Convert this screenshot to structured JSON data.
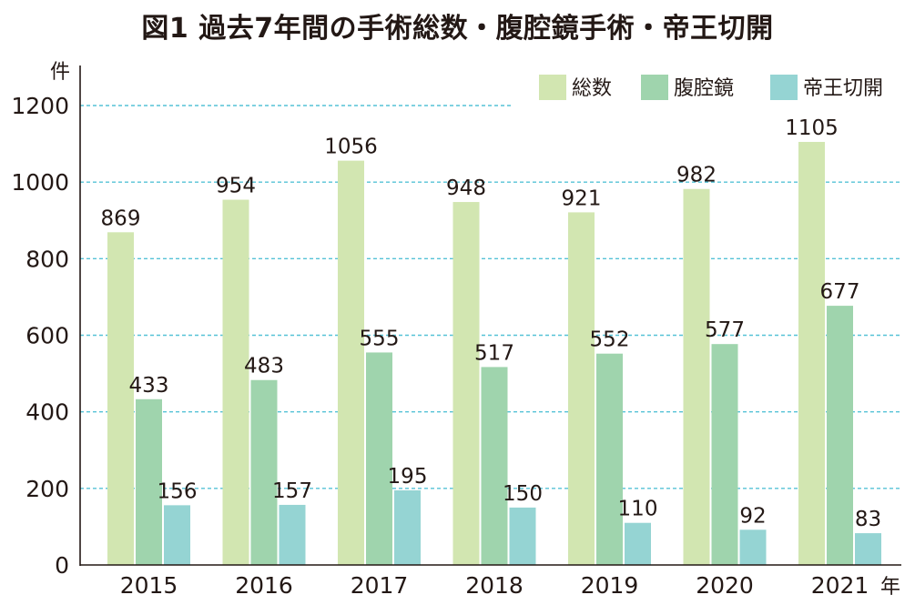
{
  "chart_data": {
    "type": "bar",
    "title": "図1 過去7年間の手術総数・腹腔鏡手術・帝王切開",
    "y_unit": "件",
    "x_unit": "年",
    "categories": [
      "2015",
      "2016",
      "2017",
      "2018",
      "2019",
      "2020",
      "2021"
    ],
    "series": [
      {
        "name": "総数",
        "values": [
          869,
          954,
          1056,
          948,
          921,
          982,
          1105
        ],
        "color": "#d2e6b1"
      },
      {
        "name": "腹腔鏡",
        "values": [
          433,
          483,
          555,
          517,
          552,
          577,
          677
        ],
        "color": "#9fd4ad"
      },
      {
        "name": "帝王切開",
        "values": [
          156,
          157,
          195,
          150,
          110,
          92,
          83
        ],
        "color": "#95d4d3"
      }
    ],
    "ylim": [
      0,
      1200
    ],
    "yticks": [
      "0",
      "200",
      "400",
      "600",
      "800",
      "1000",
      "1200"
    ],
    "grid": true,
    "grid_style": "dashed",
    "grid_color": "#55c2d6",
    "legend_position": "top-right"
  }
}
